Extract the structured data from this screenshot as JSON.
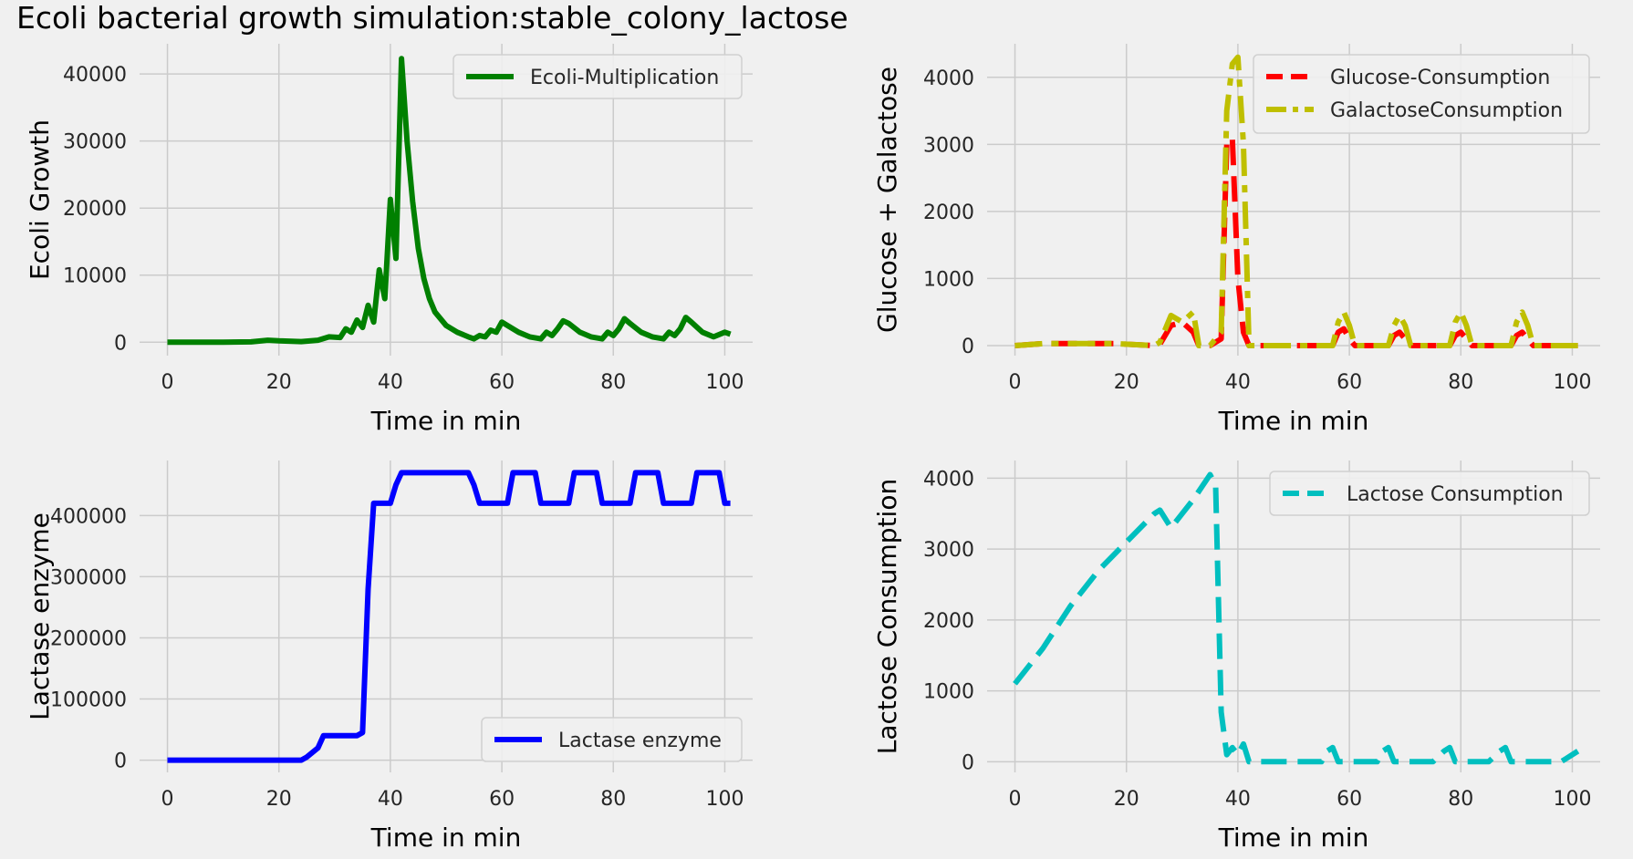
{
  "figure_title": "Ecoli bacterial growth simulation:stable_colony_lactose",
  "colors": {
    "background": "#f0f0f0",
    "grid": "#cbcbcb",
    "ecoli": "#008000",
    "glucose": "#ff0000",
    "galactose": "#bfbf00",
    "lactase": "#0000ff",
    "lactose": "#00bfbf"
  },
  "chart_data": [
    {
      "type": "line",
      "xlabel": "Time in min",
      "ylabel": "Ecoli Growth",
      "xlim": [
        -5,
        105
      ],
      "ylim": [
        -2000,
        44500
      ],
      "xticks": [
        0,
        20,
        40,
        60,
        80,
        100
      ],
      "yticks": [
        0,
        10000,
        20000,
        30000,
        40000
      ],
      "grid": true,
      "legend": "top-right",
      "series": [
        {
          "name": "Ecoli-Multiplication",
          "color": "#008000",
          "dash": "solid",
          "x": [
            0,
            5,
            10,
            15,
            18,
            20,
            24,
            27,
            29,
            31,
            32,
            33,
            34,
            35,
            36,
            37,
            38,
            39,
            40,
            41,
            42,
            43,
            44,
            45,
            46,
            47,
            48,
            50,
            52,
            54,
            55,
            56,
            57,
            58,
            59,
            60,
            61,
            63,
            65,
            67,
            68,
            69,
            70,
            71,
            72,
            74,
            76,
            78,
            79,
            80,
            81,
            82,
            83,
            85,
            87,
            89,
            90,
            91,
            92,
            93,
            94,
            96,
            98,
            100,
            101
          ],
          "values": [
            0,
            0,
            0,
            50,
            300,
            200,
            100,
            300,
            800,
            700,
            2000,
            1500,
            3300,
            2200,
            5500,
            3000,
            10800,
            6500,
            21300,
            12500,
            42300,
            30000,
            21000,
            14000,
            9500,
            6500,
            4500,
            2500,
            1500,
            800,
            500,
            1000,
            800,
            1800,
            1500,
            3000,
            2500,
            1500,
            800,
            500,
            1500,
            1000,
            2000,
            3200,
            2800,
            1500,
            800,
            500,
            1500,
            1000,
            2000,
            3500,
            2800,
            1500,
            800,
            500,
            1500,
            1000,
            2000,
            3700,
            3000,
            1500,
            800,
            1500,
            1200
          ]
        }
      ]
    },
    {
      "type": "line",
      "xlabel": "Time in min",
      "ylabel": "Glucose + Galactose",
      "xlim": [
        -5,
        105
      ],
      "ylim": [
        -150,
        4500
      ],
      "xticks": [
        0,
        20,
        40,
        60,
        80,
        100
      ],
      "yticks": [
        0,
        1000,
        2000,
        3000,
        4000
      ],
      "grid": true,
      "legend": "top-right",
      "series": [
        {
          "name": "Glucose-Consumption",
          "color": "#ff0000",
          "dash": "dashed",
          "x": [
            0,
            5,
            10,
            15,
            18,
            25,
            26,
            28,
            30,
            32,
            33,
            35,
            37,
            38,
            39,
            40,
            41,
            42,
            45,
            50,
            55,
            57,
            58,
            59,
            60,
            61,
            65,
            67,
            68,
            69,
            70,
            71,
            75,
            78,
            79,
            80,
            81,
            82,
            85,
            89,
            90,
            91,
            92,
            93,
            100,
            101
          ],
          "values": [
            0,
            30,
            30,
            30,
            30,
            0,
            20,
            300,
            350,
            200,
            0,
            0,
            100,
            3000,
            3100,
            1000,
            200,
            0,
            0,
            0,
            0,
            0,
            200,
            250,
            100,
            0,
            0,
            0,
            150,
            200,
            100,
            0,
            0,
            0,
            150,
            200,
            100,
            0,
            0,
            0,
            150,
            200,
            100,
            0,
            0,
            0
          ]
        },
        {
          "name": "GalactoseConsumption",
          "color": "#bfbf00",
          "dash": "dashdot",
          "x": [
            0,
            5,
            10,
            15,
            18,
            25,
            26,
            28,
            30,
            32,
            33,
            35,
            37,
            38,
            39,
            40,
            41,
            42,
            45,
            50,
            55,
            57,
            58,
            59,
            60,
            61,
            65,
            67,
            68,
            69,
            70,
            71,
            75,
            78,
            79,
            80,
            81,
            82,
            85,
            89,
            90,
            91,
            92,
            93,
            100,
            101
          ],
          "values": [
            0,
            30,
            30,
            30,
            30,
            0,
            50,
            450,
            350,
            500,
            0,
            0,
            200,
            3500,
            4200,
            4300,
            3000,
            0,
            0,
            0,
            0,
            0,
            350,
            500,
            300,
            0,
            0,
            0,
            300,
            450,
            300,
            0,
            0,
            0,
            350,
            500,
            300,
            0,
            0,
            0,
            350,
            500,
            300,
            0,
            0,
            0
          ]
        }
      ]
    },
    {
      "type": "line",
      "xlabel": "Time in min",
      "ylabel": "Lactase enzyme",
      "xlim": [
        -5,
        105
      ],
      "ylim": [
        -20000,
        490000
      ],
      "xticks": [
        0,
        20,
        40,
        60,
        80,
        100
      ],
      "yticks": [
        0,
        100000,
        200000,
        300000,
        400000
      ],
      "grid": true,
      "legend": "bottom-right",
      "series": [
        {
          "name": "Lactase enzyme",
          "color": "#0000ff",
          "dash": "solid",
          "x": [
            0,
            10,
            20,
            24,
            25,
            27,
            28,
            30,
            34,
            35,
            36,
            37,
            38,
            40,
            41,
            42,
            48,
            54,
            55,
            56,
            61,
            62,
            66,
            67,
            72,
            73,
            77,
            78,
            83,
            84,
            88,
            89,
            94,
            95,
            99,
            100,
            101
          ],
          "values": [
            0,
            0,
            0,
            0,
            5000,
            20000,
            40000,
            40000,
            40000,
            45000,
            280000,
            420000,
            420000,
            420000,
            450000,
            470000,
            470000,
            470000,
            450000,
            420000,
            420000,
            470000,
            470000,
            420000,
            420000,
            470000,
            470000,
            420000,
            420000,
            470000,
            470000,
            420000,
            420000,
            470000,
            470000,
            420000,
            420000
          ]
        }
      ]
    },
    {
      "type": "line",
      "xlabel": "Time in min",
      "ylabel": "Lactose Consumption",
      "xlim": [
        -5,
        105
      ],
      "ylim": [
        -150,
        4250
      ],
      "xticks": [
        0,
        20,
        40,
        60,
        80,
        100
      ],
      "yticks": [
        0,
        1000,
        2000,
        3000,
        4000
      ],
      "grid": true,
      "legend": "top-right",
      "series": [
        {
          "name": "Lactose Consumption",
          "color": "#00bfbf",
          "dash": "dashed",
          "x": [
            0,
            5,
            10,
            15,
            20,
            25,
            26,
            28,
            30,
            32,
            35,
            36,
            37,
            38,
            39,
            40,
            41,
            42,
            45,
            50,
            55,
            56,
            57,
            58,
            60,
            65,
            66,
            67,
            68,
            70,
            75,
            77,
            78,
            79,
            80,
            85,
            87,
            88,
            89,
            90,
            95,
            98,
            99,
            100,
            101
          ],
          "values": [
            1100,
            1600,
            2200,
            2700,
            3100,
            3500,
            3550,
            3300,
            3500,
            3700,
            4050,
            3900,
            700,
            100,
            200,
            100,
            250,
            0,
            0,
            0,
            0,
            150,
            200,
            0,
            0,
            0,
            150,
            200,
            0,
            0,
            0,
            150,
            200,
            0,
            0,
            0,
            150,
            200,
            0,
            0,
            0,
            0,
            50,
            100,
            150
          ]
        }
      ]
    }
  ]
}
